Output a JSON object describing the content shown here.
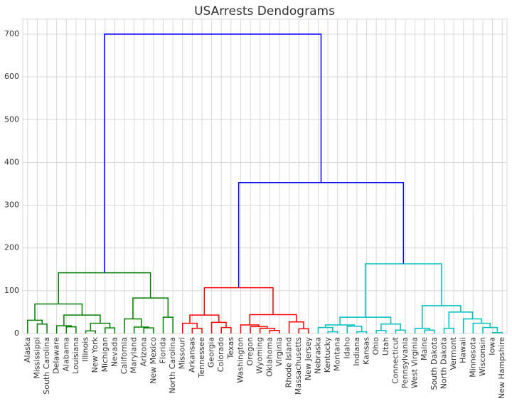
{
  "chart_data": {
    "type": "dendrogram",
    "title": "USArrests Dendograms",
    "categories": [
      "Alaska",
      "Mississippi",
      "South Carolina",
      "Delaware",
      "Alabama",
      "Louisiana",
      "Illinois",
      "New York",
      "Michigan",
      "Nevada",
      "California",
      "Maryland",
      "Arizona",
      "New Mexico",
      "Florida",
      "North Carolina",
      "Missouri",
      "Arkansas",
      "Tennessee",
      "Georgia",
      "Colorado",
      "Texas",
      "Washington",
      "Oregon",
      "Wyoming",
      "Oklahoma",
      "Virginia",
      "Rhode Island",
      "Massachusetts",
      "New Jersey",
      "Nebraska",
      "Kentucky",
      "Montana",
      "Idaho",
      "Indiana",
      "Kansas",
      "Ohio",
      "Utah",
      "Connecticut",
      "Pennsylvania",
      "West Virginia",
      "Maine",
      "South Dakota",
      "North Dakota",
      "Vermont",
      "Hawaii",
      "Minnesota",
      "Wisconsin",
      "Iowa",
      "New Hampshire"
    ],
    "links": [
      {
        "left": 1,
        "right": 2,
        "height": 22,
        "color": "#008000"
      },
      {
        "left": 0,
        "right": 50,
        "height": 31,
        "color": "#008000"
      },
      {
        "left": 4,
        "right": 5,
        "height": 15.5,
        "color": "#008000"
      },
      {
        "left": 3,
        "right": 52,
        "height": 18,
        "color": "#008000"
      },
      {
        "left": 6,
        "right": 7,
        "height": 6,
        "color": "#008000"
      },
      {
        "left": 8,
        "right": 9,
        "height": 13,
        "color": "#008000"
      },
      {
        "left": 54,
        "right": 55,
        "height": 24,
        "color": "#008000"
      },
      {
        "left": 53,
        "right": 56,
        "height": 43,
        "color": "#008000"
      },
      {
        "left": 51,
        "right": 57,
        "height": 69,
        "color": "#008000"
      },
      {
        "left": 12,
        "right": 13,
        "height": 13,
        "color": "#008000"
      },
      {
        "left": 11,
        "right": 59,
        "height": 15,
        "color": "#008000"
      },
      {
        "left": 10,
        "right": 60,
        "height": 34,
        "color": "#008000"
      },
      {
        "left": 14,
        "right": 15,
        "height": 38,
        "color": "#008000"
      },
      {
        "left": 61,
        "right": 62,
        "height": 83,
        "color": "#008000"
      },
      {
        "left": 58,
        "right": 63,
        "height": 142,
        "color": "#008000"
      },
      {
        "left": 17,
        "right": 18,
        "height": 12,
        "color": "#ff0000"
      },
      {
        "left": 16,
        "right": 65,
        "height": 24,
        "color": "#ff0000"
      },
      {
        "left": 20,
        "right": 21,
        "height": 14,
        "color": "#ff0000"
      },
      {
        "left": 19,
        "right": 67,
        "height": 26,
        "color": "#ff0000"
      },
      {
        "left": 66,
        "right": 68,
        "height": 43,
        "color": "#ff0000"
      },
      {
        "left": 25,
        "right": 26,
        "height": 7,
        "color": "#ff0000"
      },
      {
        "left": 24,
        "right": 70,
        "height": 12,
        "color": "#ff0000"
      },
      {
        "left": 23,
        "right": 71,
        "height": 16,
        "color": "#ff0000"
      },
      {
        "left": 22,
        "right": 72,
        "height": 20,
        "color": "#ff0000"
      },
      {
        "left": 28,
        "right": 29,
        "height": 11,
        "color": "#ff0000"
      },
      {
        "left": 27,
        "right": 74,
        "height": 27,
        "color": "#ff0000"
      },
      {
        "left": 73,
        "right": 75,
        "height": 44,
        "color": "#ff0000"
      },
      {
        "left": 69,
        "right": 76,
        "height": 107,
        "color": "#ff0000"
      },
      {
        "left": 31,
        "right": 32,
        "height": 4,
        "color": "#00bfbf"
      },
      {
        "left": 30,
        "right": 78,
        "height": 14,
        "color": "#00bfbf"
      },
      {
        "left": 34,
        "right": 35,
        "height": 4,
        "color": "#00bfbf"
      },
      {
        "left": 33,
        "right": 80,
        "height": 17,
        "color": "#00bfbf"
      },
      {
        "left": 79,
        "right": 81,
        "height": 20,
        "color": "#00bfbf"
      },
      {
        "left": 36,
        "right": 37,
        "height": 7,
        "color": "#00bfbf"
      },
      {
        "left": 38,
        "right": 39,
        "height": 8,
        "color": "#00bfbf"
      },
      {
        "left": 83,
        "right": 84,
        "height": 22,
        "color": "#00bfbf"
      },
      {
        "left": 82,
        "right": 85,
        "height": 38,
        "color": "#00bfbf"
      },
      {
        "left": 41,
        "right": 42,
        "height": 8,
        "color": "#00bfbf"
      },
      {
        "left": 40,
        "right": 87,
        "height": 12,
        "color": "#00bfbf"
      },
      {
        "left": 43,
        "right": 44,
        "height": 12,
        "color": "#00bfbf"
      },
      {
        "left": 48,
        "right": 49,
        "height": 2,
        "color": "#00bfbf"
      },
      {
        "left": 47,
        "right": 90,
        "height": 14,
        "color": "#00bfbf"
      },
      {
        "left": 46,
        "right": 91,
        "height": 24,
        "color": "#00bfbf"
      },
      {
        "left": 45,
        "right": 92,
        "height": 34,
        "color": "#00bfbf"
      },
      {
        "left": 89,
        "right": 93,
        "height": 50,
        "color": "#00bfbf"
      },
      {
        "left": 88,
        "right": 94,
        "height": 65,
        "color": "#00bfbf"
      },
      {
        "left": 86,
        "right": 95,
        "height": 163,
        "color": "#00bfbf"
      },
      {
        "left": 77,
        "right": 96,
        "height": 353,
        "color": "#0000ff"
      },
      {
        "left": 64,
        "right": 97,
        "height": 700,
        "color": "#0000ff"
      }
    ],
    "ylim": [
      0,
      735
    ],
    "yticks": [
      0,
      100,
      200,
      300,
      400,
      500,
      600,
      700
    ],
    "grid": true
  }
}
